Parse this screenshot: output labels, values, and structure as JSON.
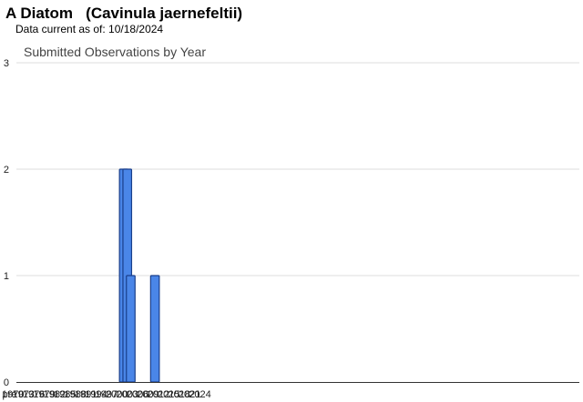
{
  "header": {
    "title": "A Diatom   (Cavinula jaernefeltii)",
    "data_current": "Data current as of: 10/18/2024"
  },
  "chart_data": {
    "type": "bar",
    "title": "Submitted Observations by Year",
    "xlabel": "",
    "ylabel": "",
    "ylim": [
      0,
      3
    ],
    "y_ticks": [
      0,
      1,
      2,
      3
    ],
    "grid": true,
    "bar_color": "#4a86e8",
    "bar_edge_color": "#1a3f8a",
    "x_tick_labels": [
      "pre",
      "1970",
      "1973",
      "1976",
      "1979",
      "1982",
      "1985",
      "1988",
      "1991",
      "1994",
      "1997",
      "2000",
      "2003",
      "2006",
      "2009",
      "2012",
      "2015",
      "2018",
      "2021",
      "2024"
    ],
    "categories": [
      "pre",
      "1970",
      "1971",
      "1972",
      "1973",
      "1974",
      "1975",
      "1976",
      "1977",
      "1978",
      "1979",
      "1980",
      "1981",
      "1982",
      "1983",
      "1984",
      "1985",
      "1986",
      "1987",
      "1988",
      "1989",
      "1990",
      "1991",
      "1992",
      "1993",
      "1994",
      "1995",
      "1996",
      "1997",
      "1998",
      "1999",
      "2000",
      "2001",
      "2002",
      "2003",
      "2004",
      "2005",
      "2006",
      "2007",
      "2008",
      "2009",
      "2010",
      "2011",
      "2012",
      "2013",
      "2014",
      "2015",
      "2016",
      "2017",
      "2018",
      "2019",
      "2020",
      "2021",
      "2022",
      "2023",
      "2024"
    ],
    "values": [
      0,
      0,
      0,
      0,
      0,
      0,
      0,
      0,
      0,
      0,
      0,
      0,
      0,
      0,
      0,
      0,
      0,
      0,
      0,
      0,
      0,
      0,
      0,
      0,
      0,
      0,
      0,
      0,
      0,
      0,
      0,
      0,
      0,
      2,
      2,
      1,
      0,
      0,
      0,
      0,
      0,
      0,
      1,
      0,
      0,
      0,
      0,
      0,
      0,
      0,
      0,
      0,
      0,
      0,
      0,
      0
    ]
  }
}
